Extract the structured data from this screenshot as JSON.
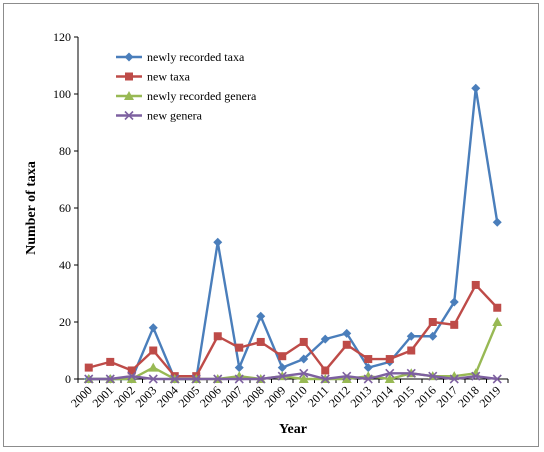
{
  "chart_data": {
    "type": "line",
    "title": "",
    "xlabel": "Year",
    "ylabel": "Number of taxa",
    "ylim": [
      0,
      120
    ],
    "yticks": [
      0,
      20,
      40,
      60,
      80,
      100,
      120
    ],
    "grid": false,
    "legend_position": "top-left",
    "categories": [
      "2000",
      "2001",
      "2002",
      "2003",
      "2004",
      "2005",
      "2006",
      "2007",
      "2008",
      "2009",
      "2010",
      "2011",
      "2012",
      "2013",
      "2014",
      "2015",
      "2016",
      "2017",
      "2018",
      "2019"
    ],
    "series": [
      {
        "name": "newly recorded taxa",
        "color": "#4a7ebb",
        "marker": "diamond",
        "values": [
          0,
          0,
          0,
          18,
          0,
          0,
          48,
          4,
          22,
          4,
          7,
          14,
          16,
          4,
          6,
          15,
          15,
          27,
          102,
          55
        ]
      },
      {
        "name": "new taxa",
        "color": "#be4b48",
        "marker": "square",
        "values": [
          4,
          6,
          3,
          10,
          1,
          1,
          15,
          11,
          13,
          8,
          13,
          3,
          12,
          7,
          7,
          10,
          20,
          19,
          33,
          25
        ]
      },
      {
        "name": "newly recorded genera",
        "color": "#98b954",
        "marker": "triangle",
        "values": [
          0,
          0,
          0,
          4,
          0,
          0,
          0,
          1,
          0,
          1,
          0,
          0,
          0,
          1,
          0,
          2,
          1,
          1,
          2,
          20
        ]
      },
      {
        "name": "new genera",
        "color": "#7d60a0",
        "marker": "x",
        "values": [
          0,
          0,
          1,
          0,
          0,
          0,
          0,
          0,
          0,
          1,
          2,
          0,
          1,
          0,
          2,
          2,
          1,
          0,
          1,
          0
        ]
      }
    ]
  }
}
